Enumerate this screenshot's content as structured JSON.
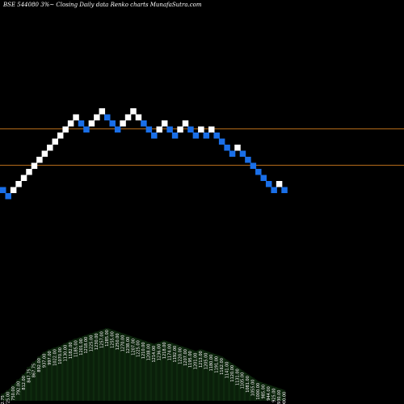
{
  "header": {
    "title": "BSE 544080  3%~  Closing Daily data  Renko  charts MunafaSutra.com"
  },
  "colors": {
    "background": "#000000",
    "up_brick": "#ffffff",
    "down_brick": "#1a6fe8",
    "level_line": "#b36b1a",
    "volume_fill": "#0e2a0e"
  },
  "chart_data": {
    "type": "renko",
    "brick_direction": [
      "down",
      "down",
      "up",
      "up",
      "up",
      "up",
      "up",
      "up",
      "up",
      "up",
      "up",
      "up",
      "up",
      "up",
      "up",
      "down",
      "down",
      "up",
      "up",
      "up",
      "down",
      "down",
      "down",
      "up",
      "up",
      "up",
      "up",
      "down",
      "down",
      "down",
      "up",
      "up",
      "down",
      "down",
      "up",
      "up",
      "down",
      "down",
      "up",
      "down",
      "up",
      "down",
      "down",
      "down",
      "down",
      "up",
      "down",
      "down",
      "down",
      "down",
      "down",
      "down",
      "down",
      "up",
      "down"
    ],
    "brick_price": [
      1122,
      1117,
      1122,
      1127,
      1132,
      1137,
      1142,
      1147,
      1152,
      1157,
      1162,
      1167,
      1172,
      1177,
      1182,
      1177,
      1172,
      1177,
      1182,
      1187,
      1182,
      1177,
      1172,
      1177,
      1182,
      1187,
      1182,
      1177,
      1172,
      1167,
      1172,
      1177,
      1172,
      1167,
      1172,
      1177,
      1172,
      1167,
      1172,
      1167,
      1172,
      1167,
      1162,
      1157,
      1152,
      1157,
      1152,
      1147,
      1142,
      1137,
      1132,
      1127,
      1122,
      1127,
      1122
    ],
    "level_lines": [
      1170,
      1140
    ],
    "volume_labels": [
      "712.75",
      "725.00",
      "750.00",
      "792.00",
      "812.00",
      "847.75",
      "867.75",
      "892.00",
      "937.00",
      "997.00",
      "1022.00",
      "1070.00",
      "1130.00",
      "1182.00",
      "1185.00",
      "1201.00",
      "1218.00",
      "1225.00",
      "1230.00",
      "1257.00",
      "1285.00",
      "1255.00",
      "1250.00",
      "1270.00",
      "1238.00",
      "1207.00",
      "1225.00",
      "1210.00",
      "1208.00",
      "1214.00",
      "1236.00",
      "1218.00",
      "1174.00",
      "1192.00",
      "1220.00",
      "1207.00",
      "1195.00",
      "1201.00",
      "1213.00",
      "1205.00",
      "1180.00",
      "1191.00",
      "1162.00",
      "1141.00",
      "1120.00",
      "1131.00",
      "1105.00",
      "1081.00",
      "1055.00",
      "1000.00",
      "985.00",
      "944.00",
      "925.00",
      "930.00",
      "900.00"
    ],
    "volume_values": [
      8,
      12,
      18,
      24,
      30,
      38,
      44,
      50,
      55,
      58,
      60,
      62,
      65,
      68,
      70,
      72,
      74,
      76,
      78,
      80,
      82,
      80,
      78,
      76,
      74,
      72,
      70,
      68,
      66,
      64,
      66,
      68,
      66,
      64,
      62,
      60,
      58,
      56,
      58,
      56,
      54,
      52,
      50,
      46,
      42,
      38,
      34,
      30,
      26,
      22,
      20,
      18,
      16,
      14,
      12
    ]
  }
}
